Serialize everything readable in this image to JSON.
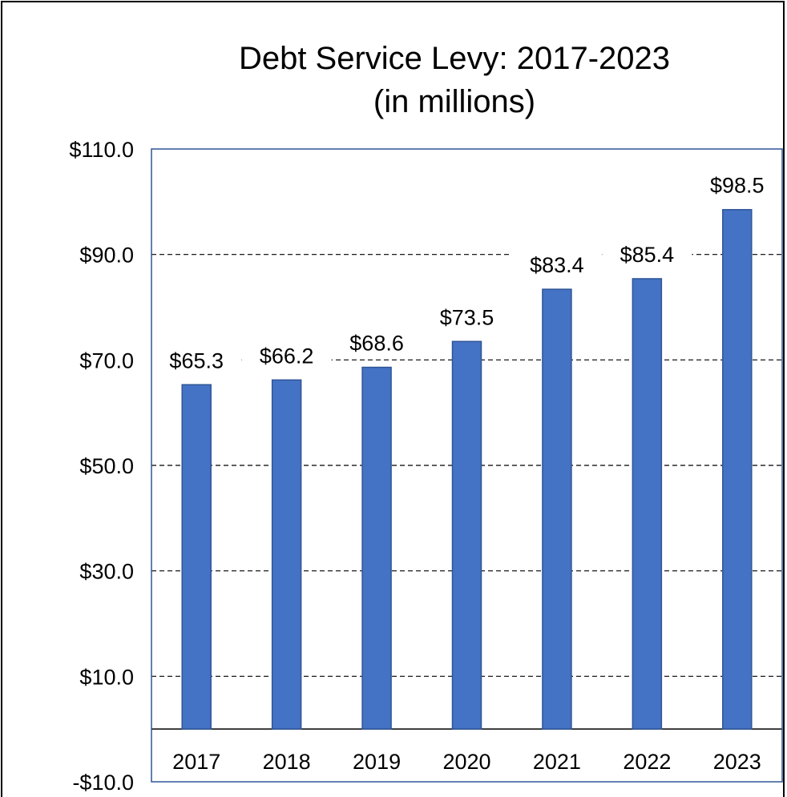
{
  "chart_data": {
    "type": "bar",
    "title": [
      "Debt Service Levy: 2017-2023",
      "(in millions)"
    ],
    "xlabel": "",
    "ylabel": "",
    "categories": [
      "2017",
      "2018",
      "2019",
      "2020",
      "2021",
      "2022",
      "2023"
    ],
    "series": [
      {
        "values": [
          65.3,
          66.2,
          68.6,
          73.5,
          83.4,
          85.4,
          98.5
        ],
        "labels": [
          "$65.3",
          "$66.2",
          "$68.6",
          "$73.5",
          "$83.4",
          "$85.4",
          "$98.5"
        ],
        "color": "#4472C4",
        "border_color": "#2F5597"
      }
    ],
    "ylim": [
      -10,
      110
    ],
    "yticks": [
      -10,
      10,
      30,
      50,
      70,
      90,
      110
    ],
    "ytick_labels": [
      "-$10.0",
      "$10.0",
      "$30.0",
      "$50.0",
      "$70.0",
      "$90.0",
      "$110.0"
    ],
    "grid": true,
    "grid_style": "dashed",
    "legend": "none",
    "frame_color": "#2F5597"
  }
}
